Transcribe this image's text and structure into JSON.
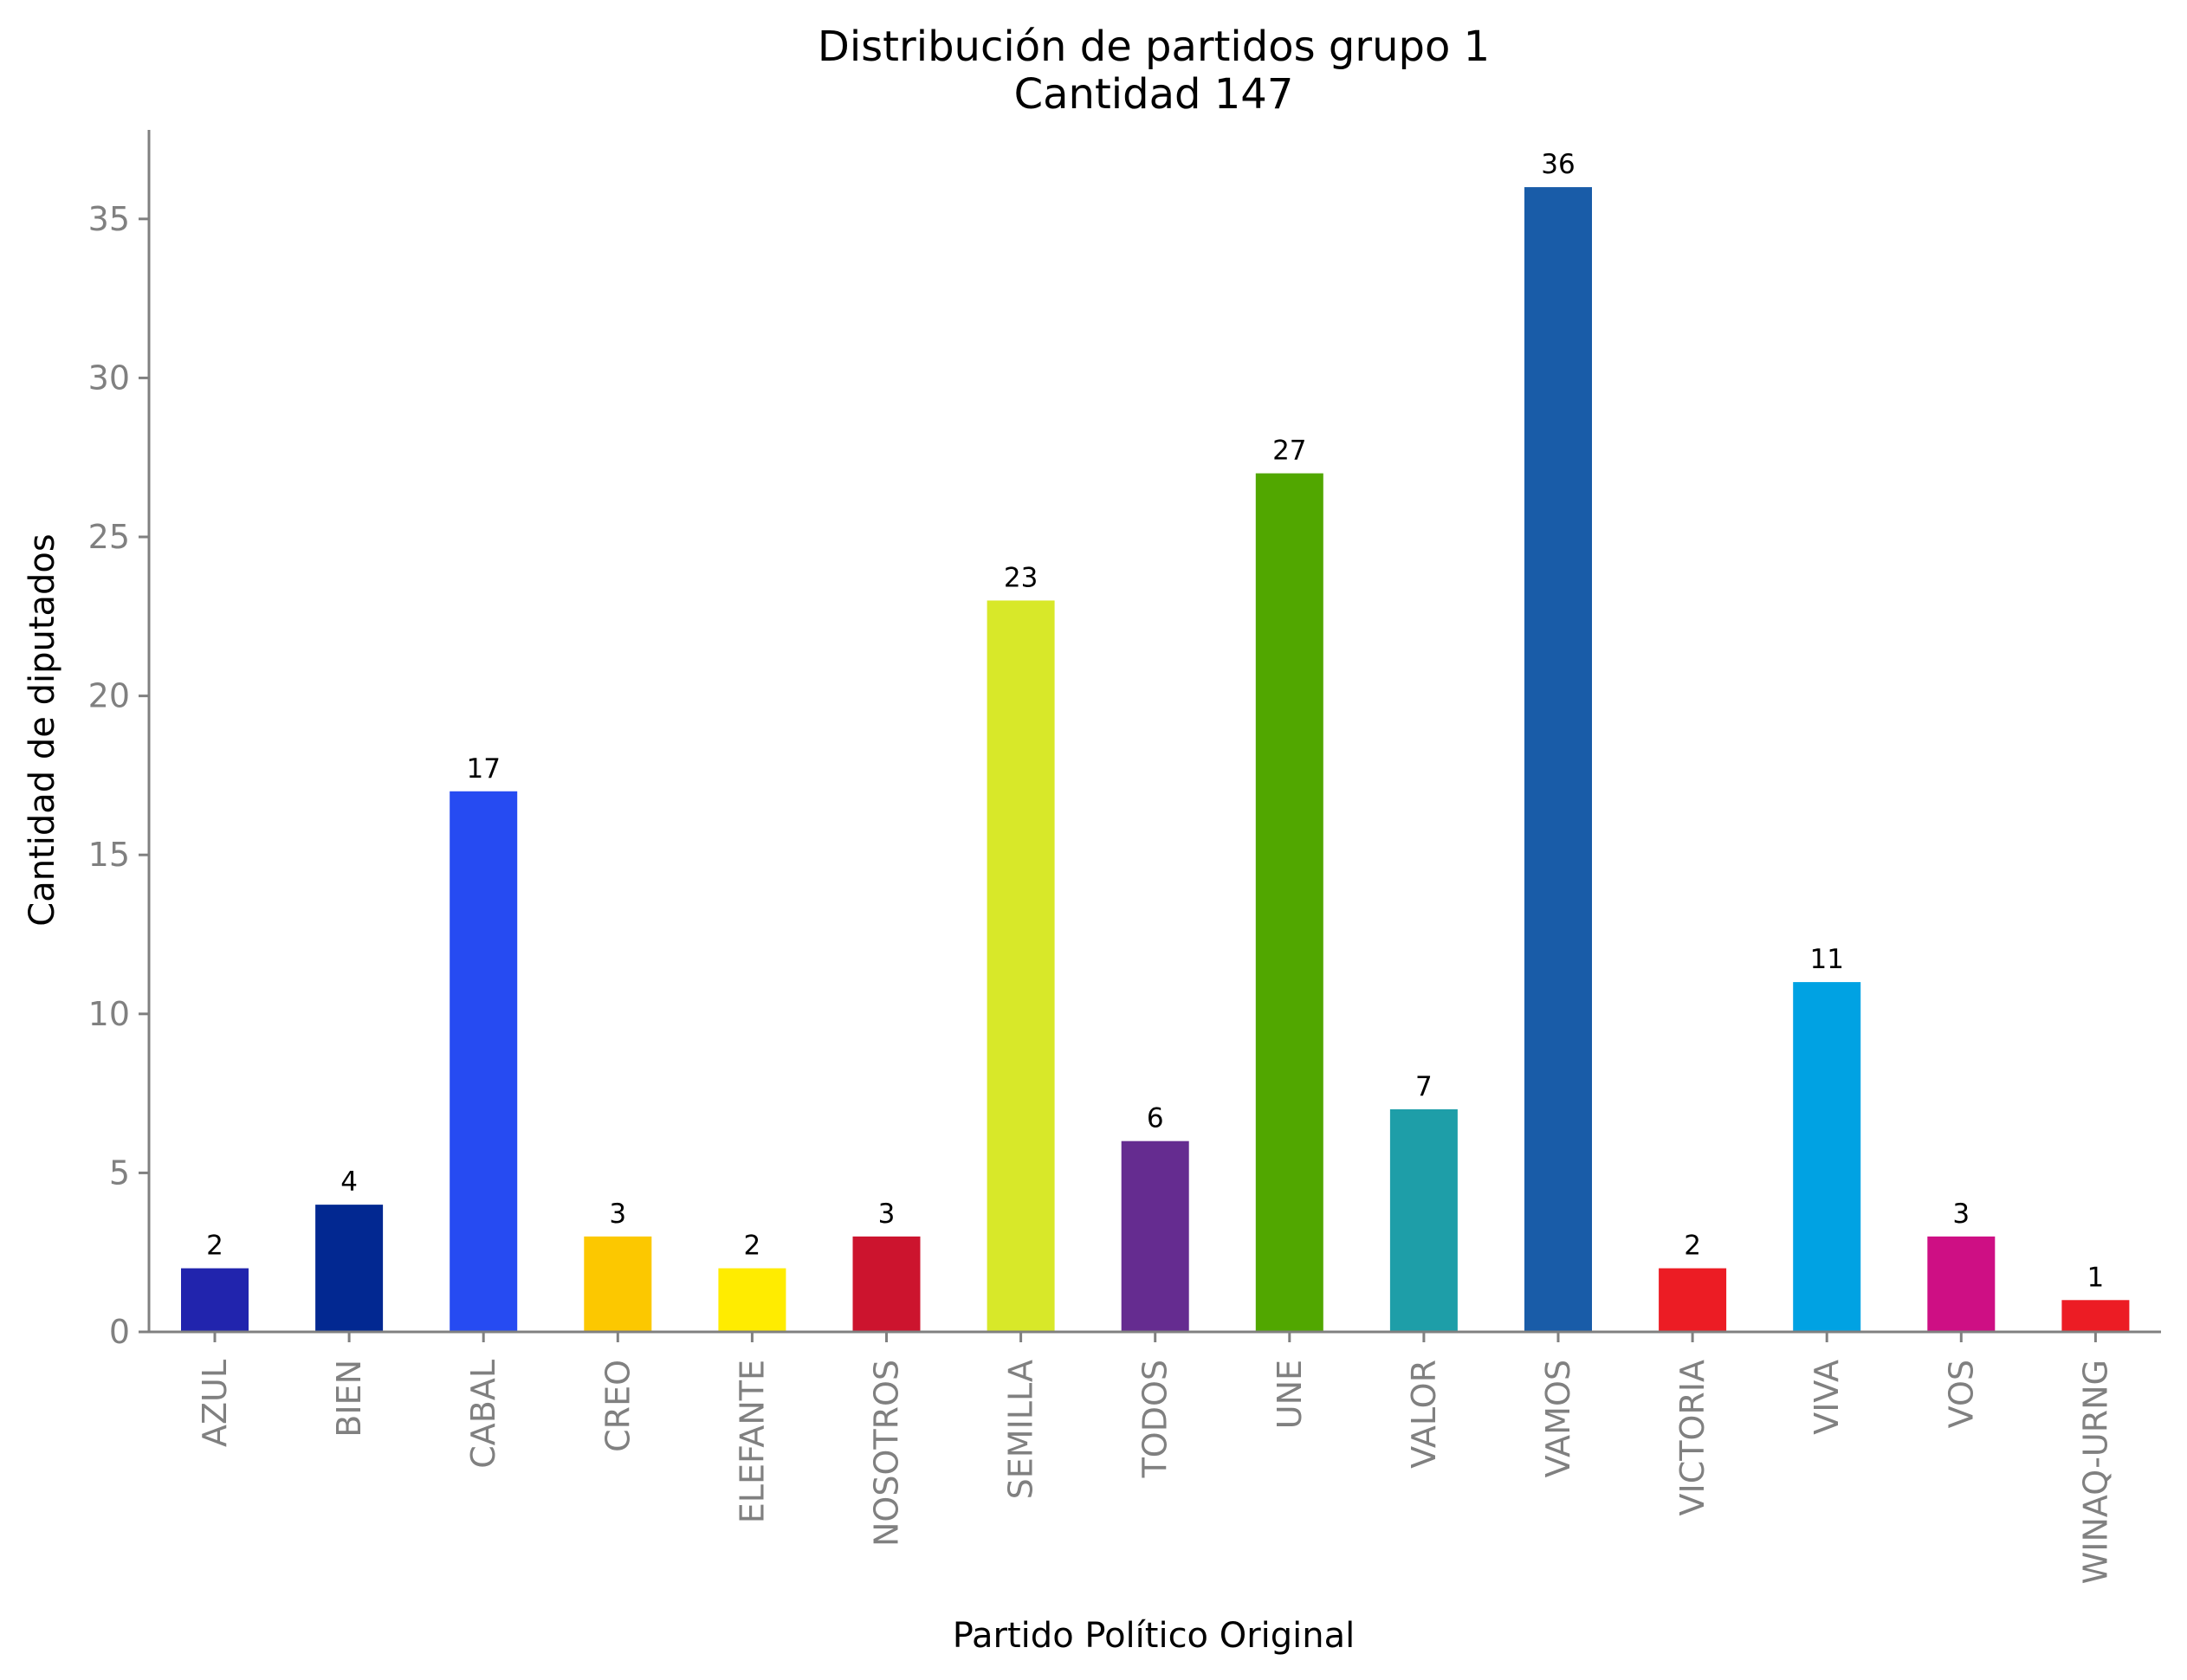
{
  "chart_data": {
    "type": "bar",
    "title": "Distribución de partidos grupo 1",
    "subtitle": "Cantidad 147",
    "xlabel": "Partido Político Original",
    "ylabel": "Cantidad de diputados",
    "categories": [
      "AZUL",
      "BIEN",
      "CABAL",
      "CREO",
      "ELEFANTE",
      "NOSOTROS",
      "SEMILLA",
      "TODOS",
      "UNE",
      "VALOR",
      "VAMOS",
      "VICTORIA",
      "VIVA",
      "VOS",
      "WINAQ-URNG"
    ],
    "values": [
      2,
      4,
      17,
      3,
      2,
      3,
      23,
      6,
      27,
      7,
      36,
      2,
      11,
      3,
      1
    ],
    "colors": [
      "#2124ad",
      "#022891",
      "#264bf2",
      "#fcc800",
      "#ffec00",
      "#cc142e",
      "#d8e829",
      "#652c90",
      "#51a700",
      "#1e9ea8",
      "#195ca8",
      "#ec1c24",
      "#00a2e3",
      "#ce0f84",
      "#ec1c24"
    ],
    "data_labels": [
      "2",
      "4",
      "17",
      "3",
      "2",
      "3",
      "23",
      "6",
      "27",
      "7",
      "36",
      "2",
      "11",
      "3",
      "1"
    ],
    "yticks": [
      0,
      5,
      10,
      15,
      20,
      25,
      30,
      35
    ],
    "ytick_labels": [
      "0",
      "5",
      "10",
      "15",
      "20",
      "25",
      "30",
      "35"
    ],
    "ylim": [
      0,
      37.8
    ],
    "grid": false,
    "legend": "none"
  }
}
